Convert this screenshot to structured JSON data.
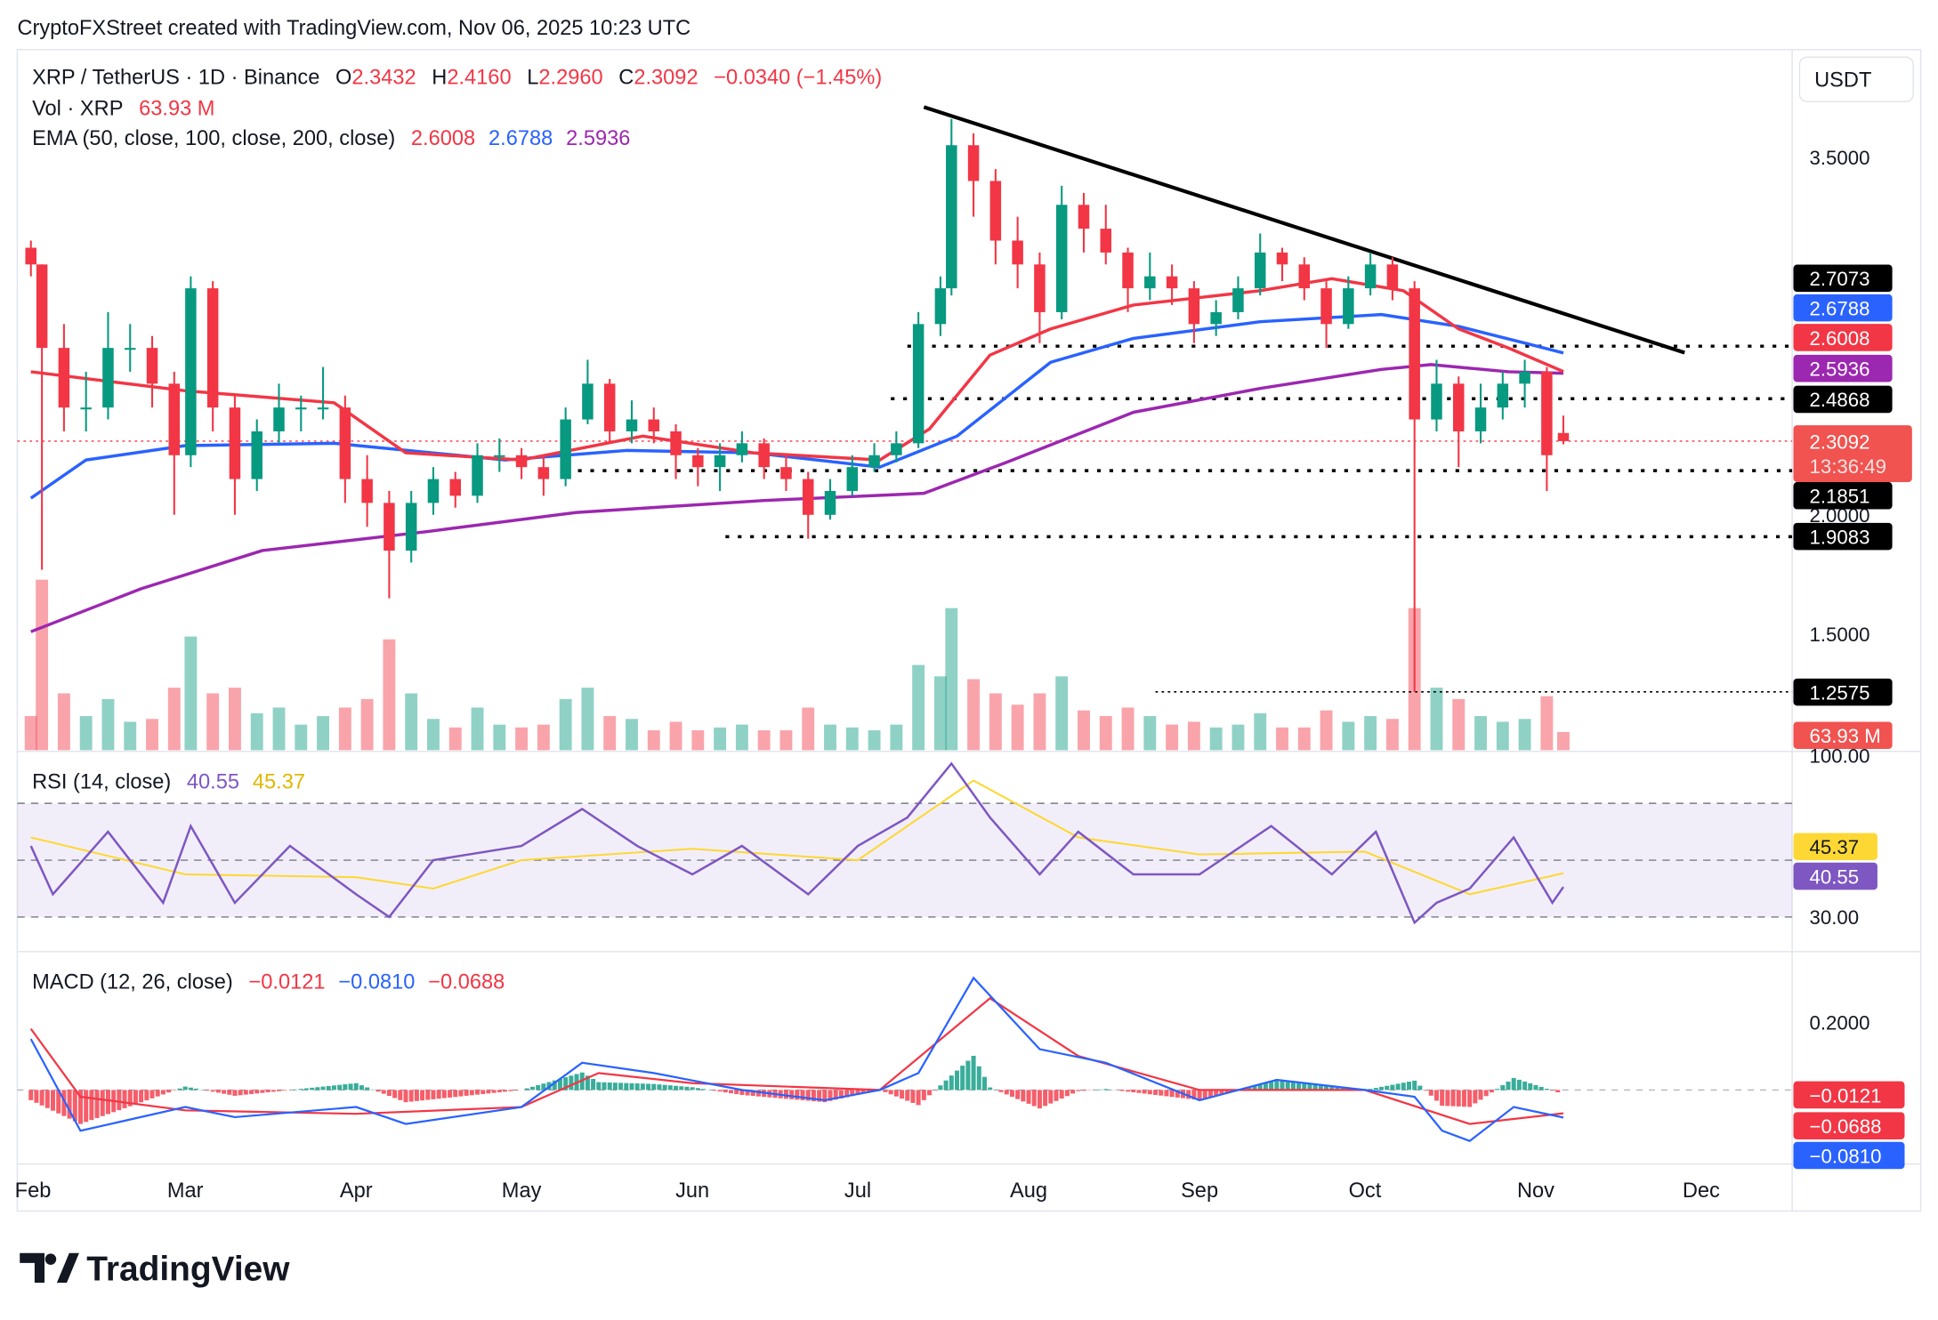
{
  "header": {
    "credit": "CryptoFXStreet created with TradingView.com, Nov 06, 2025 10:23 UTC"
  },
  "legend": {
    "symbol": "XRP / TetherUS · 1D · Binance",
    "o_label": "O",
    "o": "2.3432",
    "h_label": "H",
    "h": "2.4160",
    "l_label": "L",
    "l": "2.2960",
    "c_label": "C",
    "c": "2.3092",
    "change": "−0.0340 (−1.45%)",
    "vol_label": "Vol · XRP",
    "vol": "63.93 M",
    "ema_label": "EMA (50, close, 100, close, 200, close)",
    "ema50": "2.6008",
    "ema100": "2.6788",
    "ema200": "2.5936",
    "rsi_label": "RSI (14, close)",
    "rsi": "40.55",
    "rsi_ma": "45.37",
    "macd_label": "MACD (12, 26, close)",
    "macd_hist": "−0.0121",
    "macd_line": "−0.0810",
    "macd_signal": "−0.0688"
  },
  "axis": {
    "currency_button": "USDT",
    "price_ticks": [
      "3.5000",
      "2.0000",
      "1.5000"
    ],
    "rsi_ticks": [
      "100.00",
      "30.00"
    ],
    "macd_ticks": [
      "0.2000"
    ],
    "time_ticks": [
      "Feb",
      "Mar",
      "Apr",
      "May",
      "Jun",
      "Jul",
      "Aug",
      "Sep",
      "Oct",
      "Nov",
      "Dec"
    ],
    "price_labels": [
      {
        "text": "2.7073",
        "color": "#000000"
      },
      {
        "text": "2.6788",
        "color": "#2962ff"
      },
      {
        "text": "2.6008",
        "color": "#f23645"
      },
      {
        "text": "2.5936",
        "color": "#9c27b0"
      },
      {
        "text": "2.4868",
        "color": "#000000"
      },
      {
        "text": "2.1851",
        "color": "#000000"
      },
      {
        "text": "1.9083",
        "color": "#000000"
      },
      {
        "text": "1.2575",
        "color": "#000000"
      }
    ],
    "last_price": "2.3092",
    "countdown": "13:36:49",
    "vol_label": "63.93 M",
    "rsi_labels": [
      "45.37",
      "40.55"
    ],
    "macd_labels": [
      "−0.0121",
      "−0.0688",
      "−0.0810"
    ]
  },
  "watermark": "TradingView",
  "colors": {
    "up": "#089981",
    "down": "#f23645",
    "ema50": "#f23645",
    "ema100": "#2962ff",
    "ema200": "#9c27b0",
    "rsi": "#7e57c2",
    "rsi_ma": "#fdd835",
    "macd": "#2962ff",
    "signal": "#f23645"
  },
  "chart_data": {
    "type": "candlestick",
    "price_scale": "linear",
    "ylim": [
      1.2,
      3.75
    ],
    "candles_ohlcv": [
      [
        "2025-02-01",
        3.12,
        3.15,
        3.0,
        3.05,
        120
      ],
      [
        "2025-02-03",
        3.05,
        3.05,
        1.77,
        2.7,
        600
      ],
      [
        "2025-02-07",
        2.7,
        2.8,
        2.35,
        2.45,
        200
      ],
      [
        "2025-02-11",
        2.45,
        2.6,
        2.35,
        2.45,
        120
      ],
      [
        "2025-02-15",
        2.45,
        2.85,
        2.4,
        2.7,
        180
      ],
      [
        "2025-02-19",
        2.7,
        2.8,
        2.6,
        2.7,
        100
      ],
      [
        "2025-02-23",
        2.7,
        2.75,
        2.45,
        2.55,
        110
      ],
      [
        "2025-02-27",
        2.55,
        2.6,
        2.0,
        2.25,
        220
      ],
      [
        "2025-03-02",
        2.25,
        3.0,
        2.2,
        2.95,
        400
      ],
      [
        "2025-03-06",
        2.95,
        2.98,
        2.35,
        2.45,
        200
      ],
      [
        "2025-03-10",
        2.45,
        2.5,
        2.0,
        2.15,
        220
      ],
      [
        "2025-03-14",
        2.15,
        2.4,
        2.1,
        2.35,
        130
      ],
      [
        "2025-03-18",
        2.35,
        2.55,
        2.3,
        2.45,
        150
      ],
      [
        "2025-03-22",
        2.45,
        2.5,
        2.35,
        2.45,
        90
      ],
      [
        "2025-03-26",
        2.45,
        2.62,
        2.4,
        2.45,
        120
      ],
      [
        "2025-03-30",
        2.45,
        2.5,
        2.05,
        2.15,
        150
      ],
      [
        "2025-04-03",
        2.15,
        2.25,
        1.95,
        2.05,
        180
      ],
      [
        "2025-04-07",
        2.05,
        2.1,
        1.65,
        1.85,
        390
      ],
      [
        "2025-04-11",
        1.85,
        2.1,
        1.8,
        2.05,
        200
      ],
      [
        "2025-04-15",
        2.05,
        2.2,
        2.0,
        2.15,
        110
      ],
      [
        "2025-04-19",
        2.15,
        2.18,
        2.03,
        2.08,
        80
      ],
      [
        "2025-04-23",
        2.08,
        2.3,
        2.05,
        2.25,
        150
      ],
      [
        "2025-04-27",
        2.25,
        2.32,
        2.18,
        2.25,
        90
      ],
      [
        "2025-05-01",
        2.25,
        2.28,
        2.15,
        2.2,
        80
      ],
      [
        "2025-05-05",
        2.2,
        2.25,
        2.08,
        2.15,
        90
      ],
      [
        "2025-05-09",
        2.15,
        2.45,
        2.12,
        2.4,
        180
      ],
      [
        "2025-05-13",
        2.4,
        2.65,
        2.38,
        2.55,
        220
      ],
      [
        "2025-05-17",
        2.55,
        2.57,
        2.3,
        2.35,
        120
      ],
      [
        "2025-05-21",
        2.35,
        2.48,
        2.3,
        2.4,
        110
      ],
      [
        "2025-05-25",
        2.4,
        2.45,
        2.3,
        2.35,
        70
      ],
      [
        "2025-05-29",
        2.35,
        2.38,
        2.15,
        2.25,
        100
      ],
      [
        "2025-06-02",
        2.25,
        2.28,
        2.12,
        2.2,
        70
      ],
      [
        "2025-06-06",
        2.2,
        2.3,
        2.1,
        2.25,
        80
      ],
      [
        "2025-06-10",
        2.25,
        2.35,
        2.22,
        2.3,
        90
      ],
      [
        "2025-06-14",
        2.3,
        2.32,
        2.15,
        2.2,
        70
      ],
      [
        "2025-06-18",
        2.2,
        2.25,
        2.1,
        2.15,
        70
      ],
      [
        "2025-06-22",
        2.15,
        2.18,
        1.9,
        2.0,
        150
      ],
      [
        "2025-06-26",
        2.0,
        2.15,
        1.98,
        2.1,
        90
      ],
      [
        "2025-06-30",
        2.1,
        2.25,
        2.08,
        2.2,
        80
      ],
      [
        "2025-07-04",
        2.2,
        2.3,
        2.18,
        2.25,
        70
      ],
      [
        "2025-07-08",
        2.25,
        2.35,
        2.22,
        2.3,
        90
      ],
      [
        "2025-07-12",
        2.3,
        2.85,
        2.28,
        2.8,
        300
      ],
      [
        "2025-07-16",
        2.8,
        3.0,
        2.75,
        2.95,
        260
      ],
      [
        "2025-07-18",
        2.95,
        3.66,
        2.92,
        3.55,
        500
      ],
      [
        "2025-07-22",
        3.55,
        3.6,
        3.25,
        3.4,
        250
      ],
      [
        "2025-07-26",
        3.4,
        3.45,
        3.05,
        3.15,
        200
      ],
      [
        "2025-07-30",
        3.15,
        3.25,
        2.95,
        3.05,
        160
      ],
      [
        "2025-08-03",
        3.05,
        3.1,
        2.72,
        2.85,
        200
      ],
      [
        "2025-08-07",
        2.85,
        3.38,
        2.82,
        3.3,
        260
      ],
      [
        "2025-08-11",
        3.3,
        3.35,
        3.1,
        3.2,
        140
      ],
      [
        "2025-08-15",
        3.2,
        3.3,
        3.05,
        3.1,
        120
      ],
      [
        "2025-08-19",
        3.1,
        3.12,
        2.85,
        2.95,
        150
      ],
      [
        "2025-08-23",
        2.95,
        3.1,
        2.9,
        3.0,
        120
      ],
      [
        "2025-08-27",
        3.0,
        3.05,
        2.88,
        2.95,
        90
      ],
      [
        "2025-08-31",
        2.95,
        2.98,
        2.72,
        2.8,
        100
      ],
      [
        "2025-09-04",
        2.8,
        2.9,
        2.75,
        2.85,
        80
      ],
      [
        "2025-09-08",
        2.85,
        3.0,
        2.82,
        2.95,
        90
      ],
      [
        "2025-09-12",
        2.95,
        3.18,
        2.92,
        3.1,
        130
      ],
      [
        "2025-09-16",
        3.1,
        3.12,
        2.98,
        3.05,
        80
      ],
      [
        "2025-09-20",
        3.05,
        3.08,
        2.9,
        2.95,
        80
      ],
      [
        "2025-09-24",
        2.95,
        2.98,
        2.7,
        2.8,
        140
      ],
      [
        "2025-09-28",
        2.8,
        3.0,
        2.78,
        2.95,
        100
      ],
      [
        "2025-10-02",
        2.95,
        3.1,
        2.92,
        3.05,
        120
      ],
      [
        "2025-10-06",
        3.05,
        3.08,
        2.9,
        2.95,
        110
      ],
      [
        "2025-10-10",
        2.95,
        2.98,
        1.2575,
        2.4,
        500
      ],
      [
        "2025-10-14",
        2.4,
        2.65,
        2.35,
        2.55,
        220
      ],
      [
        "2025-10-18",
        2.55,
        2.58,
        2.2,
        2.35,
        180
      ],
      [
        "2025-10-22",
        2.35,
        2.55,
        2.3,
        2.45,
        120
      ],
      [
        "2025-10-26",
        2.45,
        2.6,
        2.4,
        2.55,
        100
      ],
      [
        "2025-10-30",
        2.55,
        2.65,
        2.45,
        2.6,
        110
      ],
      [
        "2025-11-03",
        2.6,
        2.62,
        2.1,
        2.25,
        190
      ],
      [
        "2025-11-06",
        2.3432,
        2.416,
        2.296,
        2.3092,
        63.93
      ]
    ],
    "ema50": [
      [
        "2025-02-01",
        2.6
      ],
      [
        "2025-03-01",
        2.52
      ],
      [
        "2025-03-28",
        2.47
      ],
      [
        "2025-04-10",
        2.26
      ],
      [
        "2025-05-01",
        2.23
      ],
      [
        "2025-05-23",
        2.33
      ],
      [
        "2025-06-12",
        2.26
      ],
      [
        "2025-07-05",
        2.23
      ],
      [
        "2025-07-14",
        2.36
      ],
      [
        "2025-07-25",
        2.67
      ],
      [
        "2025-08-05",
        2.78
      ],
      [
        "2025-08-20",
        2.88
      ],
      [
        "2025-09-12",
        2.94
      ],
      [
        "2025-09-25",
        2.99
      ],
      [
        "2025-10-08",
        2.94
      ],
      [
        "2025-10-18",
        2.78
      ],
      [
        "2025-10-27",
        2.7
      ],
      [
        "2025-11-06",
        2.6008
      ]
    ],
    "ema100": [
      [
        "2025-02-01",
        2.07
      ],
      [
        "2025-02-11",
        2.23
      ],
      [
        "2025-03-01",
        2.29
      ],
      [
        "2025-03-28",
        2.3
      ],
      [
        "2025-04-28",
        2.23
      ],
      [
        "2025-05-20",
        2.27
      ],
      [
        "2025-06-12",
        2.26
      ],
      [
        "2025-07-05",
        2.2
      ],
      [
        "2025-07-19",
        2.33
      ],
      [
        "2025-08-05",
        2.64
      ],
      [
        "2025-08-20",
        2.74
      ],
      [
        "2025-09-12",
        2.81
      ],
      [
        "2025-10-04",
        2.84
      ],
      [
        "2025-10-18",
        2.79
      ],
      [
        "2025-10-30",
        2.72
      ],
      [
        "2025-11-06",
        2.6788
      ]
    ],
    "ema200": [
      [
        "2025-02-01",
        1.51
      ],
      [
        "2025-02-21",
        1.69
      ],
      [
        "2025-03-15",
        1.85
      ],
      [
        "2025-04-14",
        1.93
      ],
      [
        "2025-05-11",
        2.01
      ],
      [
        "2025-06-14",
        2.06
      ],
      [
        "2025-07-13",
        2.09
      ],
      [
        "2025-07-28",
        2.22
      ],
      [
        "2025-08-20",
        2.43
      ],
      [
        "2025-09-12",
        2.53
      ],
      [
        "2025-10-04",
        2.61
      ],
      [
        "2025-10-13",
        2.63
      ],
      [
        "2025-10-27",
        2.6
      ],
      [
        "2025-11-06",
        2.5936
      ]
    ],
    "rsi": [
      [
        "2025-02-01",
        55
      ],
      [
        "2025-02-05",
        38
      ],
      [
        "2025-02-15",
        60
      ],
      [
        "2025-02-25",
        35
      ],
      [
        "2025-03-02",
        62
      ],
      [
        "2025-03-10",
        35
      ],
      [
        "2025-03-20",
        55
      ],
      [
        "2025-04-01",
        38
      ],
      [
        "2025-04-07",
        30
      ],
      [
        "2025-04-15",
        50
      ],
      [
        "2025-05-01",
        55
      ],
      [
        "2025-05-12",
        68
      ],
      [
        "2025-05-22",
        55
      ],
      [
        "2025-06-01",
        45
      ],
      [
        "2025-06-10",
        55
      ],
      [
        "2025-06-22",
        38
      ],
      [
        "2025-07-01",
        55
      ],
      [
        "2025-07-10",
        65
      ],
      [
        "2025-07-18",
        84
      ],
      [
        "2025-07-25",
        65
      ],
      [
        "2025-08-03",
        45
      ],
      [
        "2025-08-10",
        60
      ],
      [
        "2025-08-20",
        45
      ],
      [
        "2025-09-01",
        45
      ],
      [
        "2025-09-14",
        62
      ],
      [
        "2025-09-25",
        45
      ],
      [
        "2025-10-03",
        60
      ],
      [
        "2025-10-10",
        28
      ],
      [
        "2025-10-14",
        35
      ],
      [
        "2025-10-20",
        40
      ],
      [
        "2025-10-28",
        58
      ],
      [
        "2025-11-04",
        35
      ],
      [
        "2025-11-06",
        40.55
      ]
    ],
    "rsi_ma": [
      [
        "2025-02-01",
        58
      ],
      [
        "2025-03-01",
        45
      ],
      [
        "2025-04-01",
        44
      ],
      [
        "2025-04-15",
        40
      ],
      [
        "2025-05-01",
        50
      ],
      [
        "2025-06-01",
        54
      ],
      [
        "2025-07-01",
        50
      ],
      [
        "2025-07-22",
        78
      ],
      [
        "2025-08-10",
        58
      ],
      [
        "2025-09-01",
        52
      ],
      [
        "2025-10-01",
        53
      ],
      [
        "2025-10-20",
        38
      ],
      [
        "2025-11-06",
        45.37
      ]
    ],
    "macd": [
      [
        "2025-02-01",
        0.15
      ],
      [
        "2025-02-10",
        -0.12
      ],
      [
        "2025-03-01",
        -0.05
      ],
      [
        "2025-03-10",
        -0.08
      ],
      [
        "2025-04-01",
        -0.05
      ],
      [
        "2025-04-10",
        -0.1
      ],
      [
        "2025-05-01",
        -0.05
      ],
      [
        "2025-05-12",
        0.08
      ],
      [
        "2025-05-25",
        0.05
      ],
      [
        "2025-06-10",
        0.0
      ],
      [
        "2025-06-25",
        -0.03
      ],
      [
        "2025-07-05",
        0.0
      ],
      [
        "2025-07-12",
        0.05
      ],
      [
        "2025-07-22",
        0.33
      ],
      [
        "2025-08-03",
        0.12
      ],
      [
        "2025-08-15",
        0.08
      ],
      [
        "2025-09-01",
        -0.03
      ],
      [
        "2025-09-15",
        0.03
      ],
      [
        "2025-10-01",
        0.0
      ],
      [
        "2025-10-10",
        -0.02
      ],
      [
        "2025-10-15",
        -0.12
      ],
      [
        "2025-10-20",
        -0.15
      ],
      [
        "2025-10-28",
        -0.05
      ],
      [
        "2025-11-06",
        -0.081
      ]
    ],
    "macd_signal": [
      [
        "2025-02-01",
        0.18
      ],
      [
        "2025-02-10",
        -0.02
      ],
      [
        "2025-03-01",
        -0.06
      ],
      [
        "2025-04-01",
        -0.07
      ],
      [
        "2025-05-01",
        -0.05
      ],
      [
        "2025-05-15",
        0.05
      ],
      [
        "2025-06-01",
        0.02
      ],
      [
        "2025-07-05",
        0.0
      ],
      [
        "2025-07-25",
        0.27
      ],
      [
        "2025-08-10",
        0.1
      ],
      [
        "2025-09-01",
        0.0
      ],
      [
        "2025-10-01",
        0.0
      ],
      [
        "2025-10-20",
        -0.1
      ],
      [
        "2025-11-06",
        -0.0688
      ]
    ],
    "trendline": [
      [
        "2025-07-13",
        3.71
      ],
      [
        "2025-11-28",
        2.68
      ]
    ],
    "levels": [
      {
        "price": 2.7073,
        "from": "2025-07-10"
      },
      {
        "price": 2.4868,
        "from": "2025-07-07"
      },
      {
        "price": 2.1851,
        "from": "2025-05-09"
      },
      {
        "price": 1.9083,
        "from": "2025-06-07"
      },
      {
        "price": 1.2575,
        "from": "2025-08-24"
      }
    ],
    "rsi_bands": [
      70,
      50,
      30
    ]
  }
}
